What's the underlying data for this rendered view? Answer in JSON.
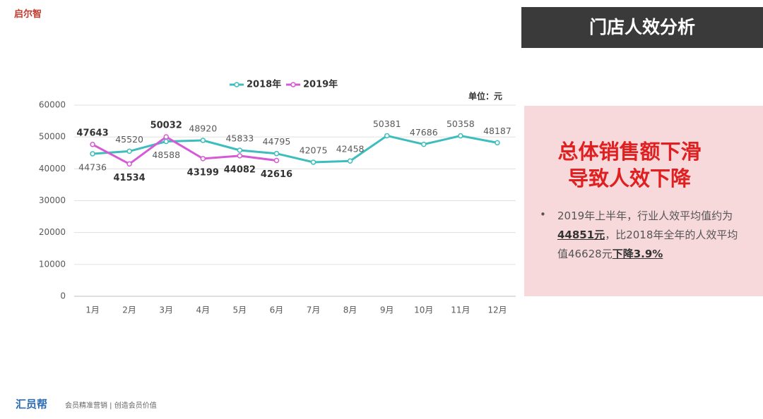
{
  "logo": "启尔智",
  "header": {
    "title": "门店人效分析"
  },
  "panel": {
    "title_lines": [
      "总体销售额下滑",
      "导致人效下降"
    ],
    "note": [
      {
        "text": "2019年上半年，行业人效平均值约为"
      },
      {
        "text": "44851元",
        "strong": true
      },
      {
        "text": "，比2018年全年的人效平均值46628元"
      },
      {
        "text": "下降3.9%",
        "strong": true
      }
    ]
  },
  "footer": {
    "brand": "汇员帮",
    "slogan": "会员精准营销 | 创造会员价值"
  },
  "chart_data": {
    "type": "line",
    "unit": "单位：元",
    "categories": [
      "1月",
      "2月",
      "3月",
      "4月",
      "5月",
      "6月",
      "7月",
      "8月",
      "9月",
      "10月",
      "11月",
      "12月"
    ],
    "series": [
      {
        "name": "2018年",
        "color": "#3dbdbd",
        "values": [
          44736,
          45520,
          48588,
          48920,
          45833,
          44795,
          42075,
          42458,
          50381,
          47686,
          50358,
          48187
        ]
      },
      {
        "name": "2019年",
        "color": "#d65ad6",
        "values": [
          47643,
          41534,
          50032,
          43199,
          44082,
          42616,
          null,
          null,
          null,
          null,
          null,
          null
        ]
      }
    ],
    "ylim": [
      0,
      60000
    ],
    "yticks": [
      0,
      10000,
      20000,
      30000,
      40000,
      50000,
      60000
    ],
    "grid": true
  }
}
